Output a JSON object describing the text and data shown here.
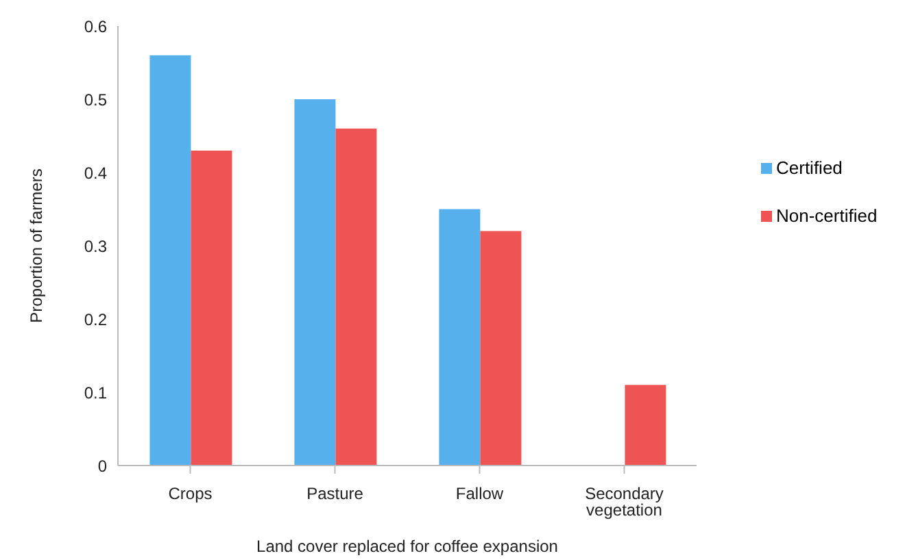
{
  "chart_data": {
    "type": "bar",
    "xlabel": "Land cover replaced for coffee expansion",
    "ylabel": "Proportion of farmers",
    "categories": [
      "Crops",
      "Pasture",
      "Fallow",
      "Secondary vegetation"
    ],
    "series": [
      {
        "name": "Certified",
        "color": "#56b0ec",
        "values": [
          0.56,
          0.5,
          0.35,
          0
        ]
      },
      {
        "name": "Non-certified",
        "color": "#ee5453",
        "values": [
          0.43,
          0.46,
          0.32,
          0.11
        ]
      }
    ],
    "ylim": [
      0,
      0.6
    ],
    "yticks": [
      0,
      0.1,
      0.2,
      0.3,
      0.4,
      0.5,
      0.6
    ],
    "grid": false,
    "legend": "right"
  }
}
